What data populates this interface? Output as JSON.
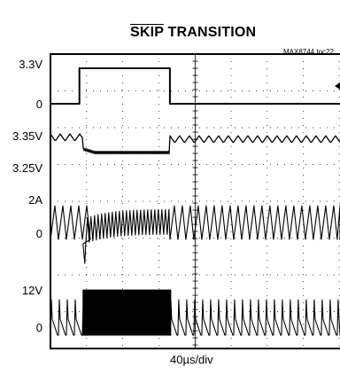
{
  "chart_data": {
    "type": "line",
    "title_overline": "SKIP",
    "title_rest": " TRANSITION",
    "tag": "MAX8744 toc22",
    "xlabel": "40µs/div",
    "x_range_us": [
      0,
      400
    ],
    "divisions_x": 10,
    "y_tick_labels": [
      "3.3V",
      "0",
      "3.35V",
      "3.25V",
      "2A",
      "0",
      "12V",
      "0"
    ],
    "series": [
      {
        "logic_high_us": [
          40,
          165
        ]
      },
      {
        "quiet_window_us": [
          45,
          165
        ]
      },
      {
        "dense_window_us": [
          45,
          165
        ]
      },
      {
        "dense_window_us": [
          45,
          165
        ]
      }
    ]
  }
}
